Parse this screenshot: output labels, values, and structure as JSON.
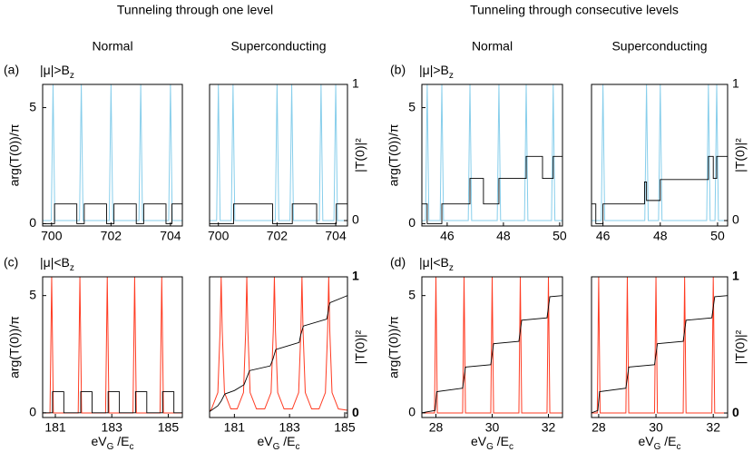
{
  "group_titles": [
    "Tunneling through one level",
    "Tunneling through consecutive levels"
  ],
  "chart_data": [
    {
      "type": "line",
      "panel_label": "(a)",
      "annotation": [
        "|μ|>B",
        "z"
      ],
      "title": "Normal",
      "ylabel": "arg(T(0))/π",
      "xlim": [
        699.7,
        704.4
      ],
      "xticks": [
        700,
        702,
        704
      ],
      "ylim": [
        -0.1,
        6
      ],
      "yticks": [
        0,
        5
      ],
      "y2lim": [
        -0.04,
        1
      ],
      "series": [
        {
          "color": "#000000",
          "x": [
            699.7,
            700.1,
            700.1,
            700.85,
            700.85,
            701.1,
            701.1,
            701.85,
            701.85,
            702.1,
            702.1,
            702.85,
            702.85,
            703.1,
            703.1,
            703.85,
            703.85,
            704.05,
            704.05,
            704.4
          ],
          "values": [
            0,
            0,
            0.85,
            0.85,
            0,
            0,
            0.85,
            0.85,
            0,
            0,
            0.85,
            0.85,
            0,
            0,
            0.85,
            0.85,
            0,
            0,
            0.85,
            0.85
          ]
        },
        {
          "color": "#87ceeb",
          "axis": "y2",
          "x": [
            699.7,
            699.99,
            700.05,
            700.11,
            700.94,
            701,
            701.06,
            701.94,
            702,
            702.06,
            702.94,
            703,
            703.06,
            703.94,
            704,
            704.06,
            704.4
          ],
          "values": [
            0,
            0,
            1,
            0,
            0,
            1,
            0,
            0,
            1,
            0,
            0,
            1,
            0,
            0,
            1,
            0,
            0
          ]
        }
      ]
    },
    {
      "type": "line",
      "title": "Superconducting",
      "y2label": "|T(0)|²",
      "xlim": [
        699.7,
        704.4
      ],
      "xticks": [
        700,
        702,
        704
      ],
      "ylim": [
        -0.1,
        6
      ],
      "y2lim": [
        -0.04,
        1
      ],
      "y2ticks": [
        0,
        1
      ],
      "series": [
        {
          "color": "#000000",
          "x": [
            699.7,
            700.52,
            700.52,
            701.85,
            701.85,
            702.52,
            702.52,
            703.35,
            703.35,
            704.02,
            704.02,
            704.4
          ],
          "values": [
            0,
            0,
            0.85,
            0.85,
            0,
            0,
            0.85,
            0.85,
            0,
            0,
            0.85,
            0.85
          ]
        },
        {
          "color": "#87ceeb",
          "axis": "y2",
          "x": [
            699.7,
            699.94,
            700,
            700.06,
            700.44,
            700.5,
            700.56,
            701.94,
            702,
            702.06,
            702.44,
            702.5,
            702.56,
            703.44,
            703.5,
            703.56,
            703.94,
            704,
            704.06,
            704.4
          ],
          "values": [
            0,
            0,
            1,
            0,
            0,
            1,
            0,
            0,
            1,
            0,
            0,
            1,
            0,
            0,
            1,
            0,
            0,
            1,
            0,
            0
          ]
        }
      ]
    },
    {
      "type": "line",
      "panel_label": "(b)",
      "annotation": [
        "|μ|>B",
        "z"
      ],
      "title": "Normal",
      "ylabel": "arg(T(0))/π",
      "xlim": [
        45.1,
        50.1
      ],
      "xticks": [
        46,
        48,
        50
      ],
      "ylim": [
        -0.1,
        6
      ],
      "yticks": [
        0,
        5
      ],
      "y2lim": [
        -0.04,
        1
      ],
      "series": [
        {
          "color": "#000000",
          "x": [
            45.1,
            45.29,
            45.29,
            45.81,
            45.81,
            46.81,
            46.81,
            47.29,
            47.29,
            47.84,
            47.84,
            48.81,
            48.81,
            49.39,
            49.39,
            49.77,
            49.77,
            50.1
          ],
          "values": [
            0.85,
            0.85,
            0,
            0,
            0.85,
            0.85,
            1.95,
            1.95,
            0.85,
            0.85,
            1.95,
            1.95,
            2.9,
            2.9,
            1.95,
            1.95,
            2.9,
            2.9
          ]
        },
        {
          "color": "#87ceeb",
          "axis": "y2",
          "x": [
            45.1,
            45.23,
            45.29,
            45.35,
            45.75,
            45.81,
            45.87,
            46.75,
            46.81,
            46.87,
            47.78,
            47.84,
            47.9,
            48.75,
            48.81,
            48.87,
            49.71,
            49.77,
            49.83,
            50.1
          ],
          "values": [
            0,
            0,
            1,
            0,
            0,
            1,
            0,
            0,
            1,
            0,
            0,
            1,
            0,
            0,
            1,
            0,
            0,
            1,
            0,
            0
          ]
        }
      ]
    },
    {
      "type": "line",
      "title": "Superconducting",
      "y2label": "|T(0)|²",
      "xlim": [
        45.6,
        50.35
      ],
      "xticks": [
        46,
        48,
        50
      ],
      "ylim": [
        -0.1,
        6
      ],
      "y2lim": [
        -0.04,
        1
      ],
      "y2ticks": [
        0,
        1
      ],
      "series": [
        {
          "color": "#000000",
          "x": [
            45.6,
            45.75,
            45.75,
            46.0,
            46.0,
            47.45,
            47.45,
            47.52,
            47.52,
            48.0,
            48.0,
            49.68,
            49.68,
            49.85,
            49.85,
            49.97,
            49.97,
            50.35
          ],
          "values": [
            0.85,
            0.85,
            0,
            0,
            0.85,
            0.85,
            1.8,
            1.8,
            1.0,
            1.0,
            1.9,
            1.9,
            2.9,
            2.9,
            1.95,
            1.95,
            2.9,
            2.9
          ]
        },
        {
          "color": "#87ceeb",
          "axis": "y2",
          "x": [
            45.6,
            45.94,
            46.0,
            46.06,
            47.46,
            47.52,
            47.58,
            47.94,
            48.0,
            48.06,
            49.62,
            49.68,
            49.74,
            49.91,
            49.97,
            50.03,
            50.35
          ],
          "values": [
            0,
            0,
            1,
            0,
            0,
            1,
            0,
            0,
            1,
            0,
            0,
            1,
            0,
            0,
            1,
            0,
            0
          ]
        }
      ]
    },
    {
      "type": "line",
      "panel_label": "(c)",
      "annotation": [
        "|μ|<B",
        "z"
      ],
      "ylabel": "arg(T(0))/π",
      "xlabel": [
        "eV",
        "G",
        " /E",
        "c"
      ],
      "xlim": [
        180.55,
        185.5
      ],
      "xticks": [
        181,
        183,
        185
      ],
      "ylim": [
        -0.2,
        5.8
      ],
      "yticks": [
        0,
        5
      ],
      "y2lim": [
        -0.033,
        1
      ],
      "series": [
        {
          "color": "#000000",
          "x": [
            180.55,
            180.9,
            180.9,
            181.3,
            181.3,
            181.9,
            181.9,
            182.3,
            182.3,
            182.87,
            182.87,
            183.27,
            183.27,
            183.84,
            183.84,
            184.24,
            184.24,
            184.8,
            184.8,
            185.2,
            185.2,
            185.5
          ],
          "values": [
            0,
            0,
            0.9,
            0.9,
            0,
            0,
            0.9,
            0.9,
            0,
            0,
            0.9,
            0.9,
            0,
            0,
            0.9,
            0.9,
            0,
            0,
            0.9,
            0.9,
            0,
            0
          ]
        },
        {
          "color": "#ff3b22",
          "axis": "y2",
          "x": [
            180.55,
            180.81,
            180.87,
            180.93,
            181.81,
            181.87,
            181.93,
            182.78,
            182.84,
            182.9,
            183.75,
            183.81,
            183.87,
            184.71,
            184.77,
            184.83,
            185.5
          ],
          "values": [
            0,
            0,
            1,
            0,
            0,
            1,
            0,
            0,
            1,
            0,
            0,
            1,
            0,
            0,
            1,
            0,
            0
          ]
        }
      ]
    },
    {
      "type": "line",
      "y2label": "|T(0)|²",
      "xlabel": [
        "eV",
        "G",
        " /E",
        "c"
      ],
      "xlim": [
        180.1,
        185.1
      ],
      "xticks": [
        181,
        183,
        185
      ],
      "ylim": [
        -0.2,
        5.8
      ],
      "y2lim": [
        -0.033,
        1
      ],
      "y2ticks": [
        0,
        1
      ],
      "series": [
        {
          "color": "#000000",
          "x": [
            180.1,
            180.4,
            180.52,
            180.65,
            181.0,
            181.35,
            181.45,
            181.55,
            182.3,
            182.4,
            182.45,
            182.5,
            183.35,
            183.4,
            183.45,
            183.5,
            184.35,
            184.4,
            184.42,
            184.47,
            185.1
          ],
          "values": [
            0.05,
            0.3,
            0.5,
            0.8,
            0.95,
            1.2,
            1.5,
            1.8,
            2.0,
            2.3,
            2.5,
            2.7,
            3.0,
            3.3,
            3.5,
            3.7,
            4.0,
            4.3,
            4.5,
            4.7,
            5.0
          ]
        },
        {
          "color": "#ff3b22",
          "axis": "y2",
          "x": [
            180.1,
            180.17,
            180.4,
            180.48,
            180.52,
            180.56,
            180.64,
            180.87,
            181.1,
            181.33,
            181.41,
            181.45,
            181.49,
            181.57,
            181.8,
            182.1,
            182.33,
            182.41,
            182.45,
            182.49,
            182.57,
            182.8,
            183.1,
            183.33,
            183.41,
            183.45,
            183.49,
            183.57,
            183.8,
            184.07,
            184.3,
            184.38,
            184.42,
            184.46,
            184.54,
            184.77,
            185.1
          ],
          "values": [
            0.01,
            0.03,
            0.15,
            0.6,
            1,
            0.6,
            0.15,
            0.03,
            0.03,
            0.15,
            0.6,
            1,
            0.6,
            0.15,
            0.03,
            0.03,
            0.15,
            0.6,
            1,
            0.6,
            0.15,
            0.03,
            0.03,
            0.15,
            0.6,
            1,
            0.6,
            0.15,
            0.03,
            0.03,
            0.15,
            0.6,
            1,
            0.6,
            0.15,
            0.03,
            0.02
          ]
        }
      ]
    },
    {
      "type": "line",
      "panel_label": "(d)",
      "annotation": [
        "|μ|<B",
        "z"
      ],
      "ylabel": "arg(T(0))/π",
      "xlabel": [
        "eV",
        "G",
        " /E",
        "c"
      ],
      "xlim": [
        27.5,
        32.5
      ],
      "xticks": [
        28,
        30,
        32
      ],
      "ylim": [
        -0.2,
        5.8
      ],
      "yticks": [
        0,
        5
      ],
      "y2lim": [
        -0.033,
        1
      ],
      "series": [
        {
          "color": "#000000",
          "x": [
            27.5,
            27.97,
            28.03,
            28.95,
            29.0,
            29.05,
            29.95,
            30.0,
            30.05,
            30.95,
            31.0,
            31.05,
            31.95,
            32.0,
            32.05,
            32.5
          ],
          "values": [
            0,
            0.1,
            0.9,
            1.05,
            1.5,
            1.95,
            2.05,
            2.5,
            2.95,
            3.05,
            3.5,
            3.95,
            4.05,
            4.5,
            4.95,
            5.0
          ]
        },
        {
          "color": "#ff3b22",
          "axis": "y2",
          "x": [
            27.5,
            27.95,
            28,
            28.05,
            28.95,
            29,
            29.05,
            29.95,
            30,
            30.05,
            30.95,
            31,
            31.05,
            31.95,
            32,
            32.05,
            32.5
          ],
          "values": [
            0,
            0,
            1,
            0,
            0,
            1,
            0,
            0,
            1,
            0,
            0,
            1,
            0,
            0,
            1,
            0,
            0
          ]
        }
      ]
    },
    {
      "type": "line",
      "y2label": "|T(0)|²",
      "xlabel": [
        "eV",
        "G",
        " /E",
        "c"
      ],
      "xlim": [
        27.75,
        32.5
      ],
      "xticks": [
        28,
        30,
        32
      ],
      "ylim": [
        -0.2,
        5.8
      ],
      "y2lim": [
        -0.033,
        1
      ],
      "y2ticks": [
        0,
        1
      ],
      "series": [
        {
          "color": "#000000",
          "x": [
            27.75,
            27.97,
            28.03,
            28.95,
            29.0,
            29.05,
            29.95,
            30.0,
            30.05,
            30.95,
            31.0,
            31.05,
            31.95,
            32.0,
            32.05,
            32.5
          ],
          "values": [
            0,
            0.1,
            0.9,
            1.05,
            1.5,
            1.95,
            2.05,
            2.5,
            2.95,
            3.05,
            3.5,
            3.95,
            4.05,
            4.5,
            4.95,
            5.0
          ]
        },
        {
          "color": "#ff3b22",
          "axis": "y2",
          "x": [
            27.75,
            27.95,
            28,
            28.05,
            28.95,
            29,
            29.05,
            29.95,
            30,
            30.05,
            30.95,
            31,
            31.05,
            31.95,
            32,
            32.05,
            32.5
          ],
          "values": [
            0,
            0,
            1,
            0,
            0,
            1,
            0,
            0,
            1,
            0,
            0,
            1,
            0,
            0,
            1,
            0,
            0
          ]
        }
      ]
    }
  ]
}
